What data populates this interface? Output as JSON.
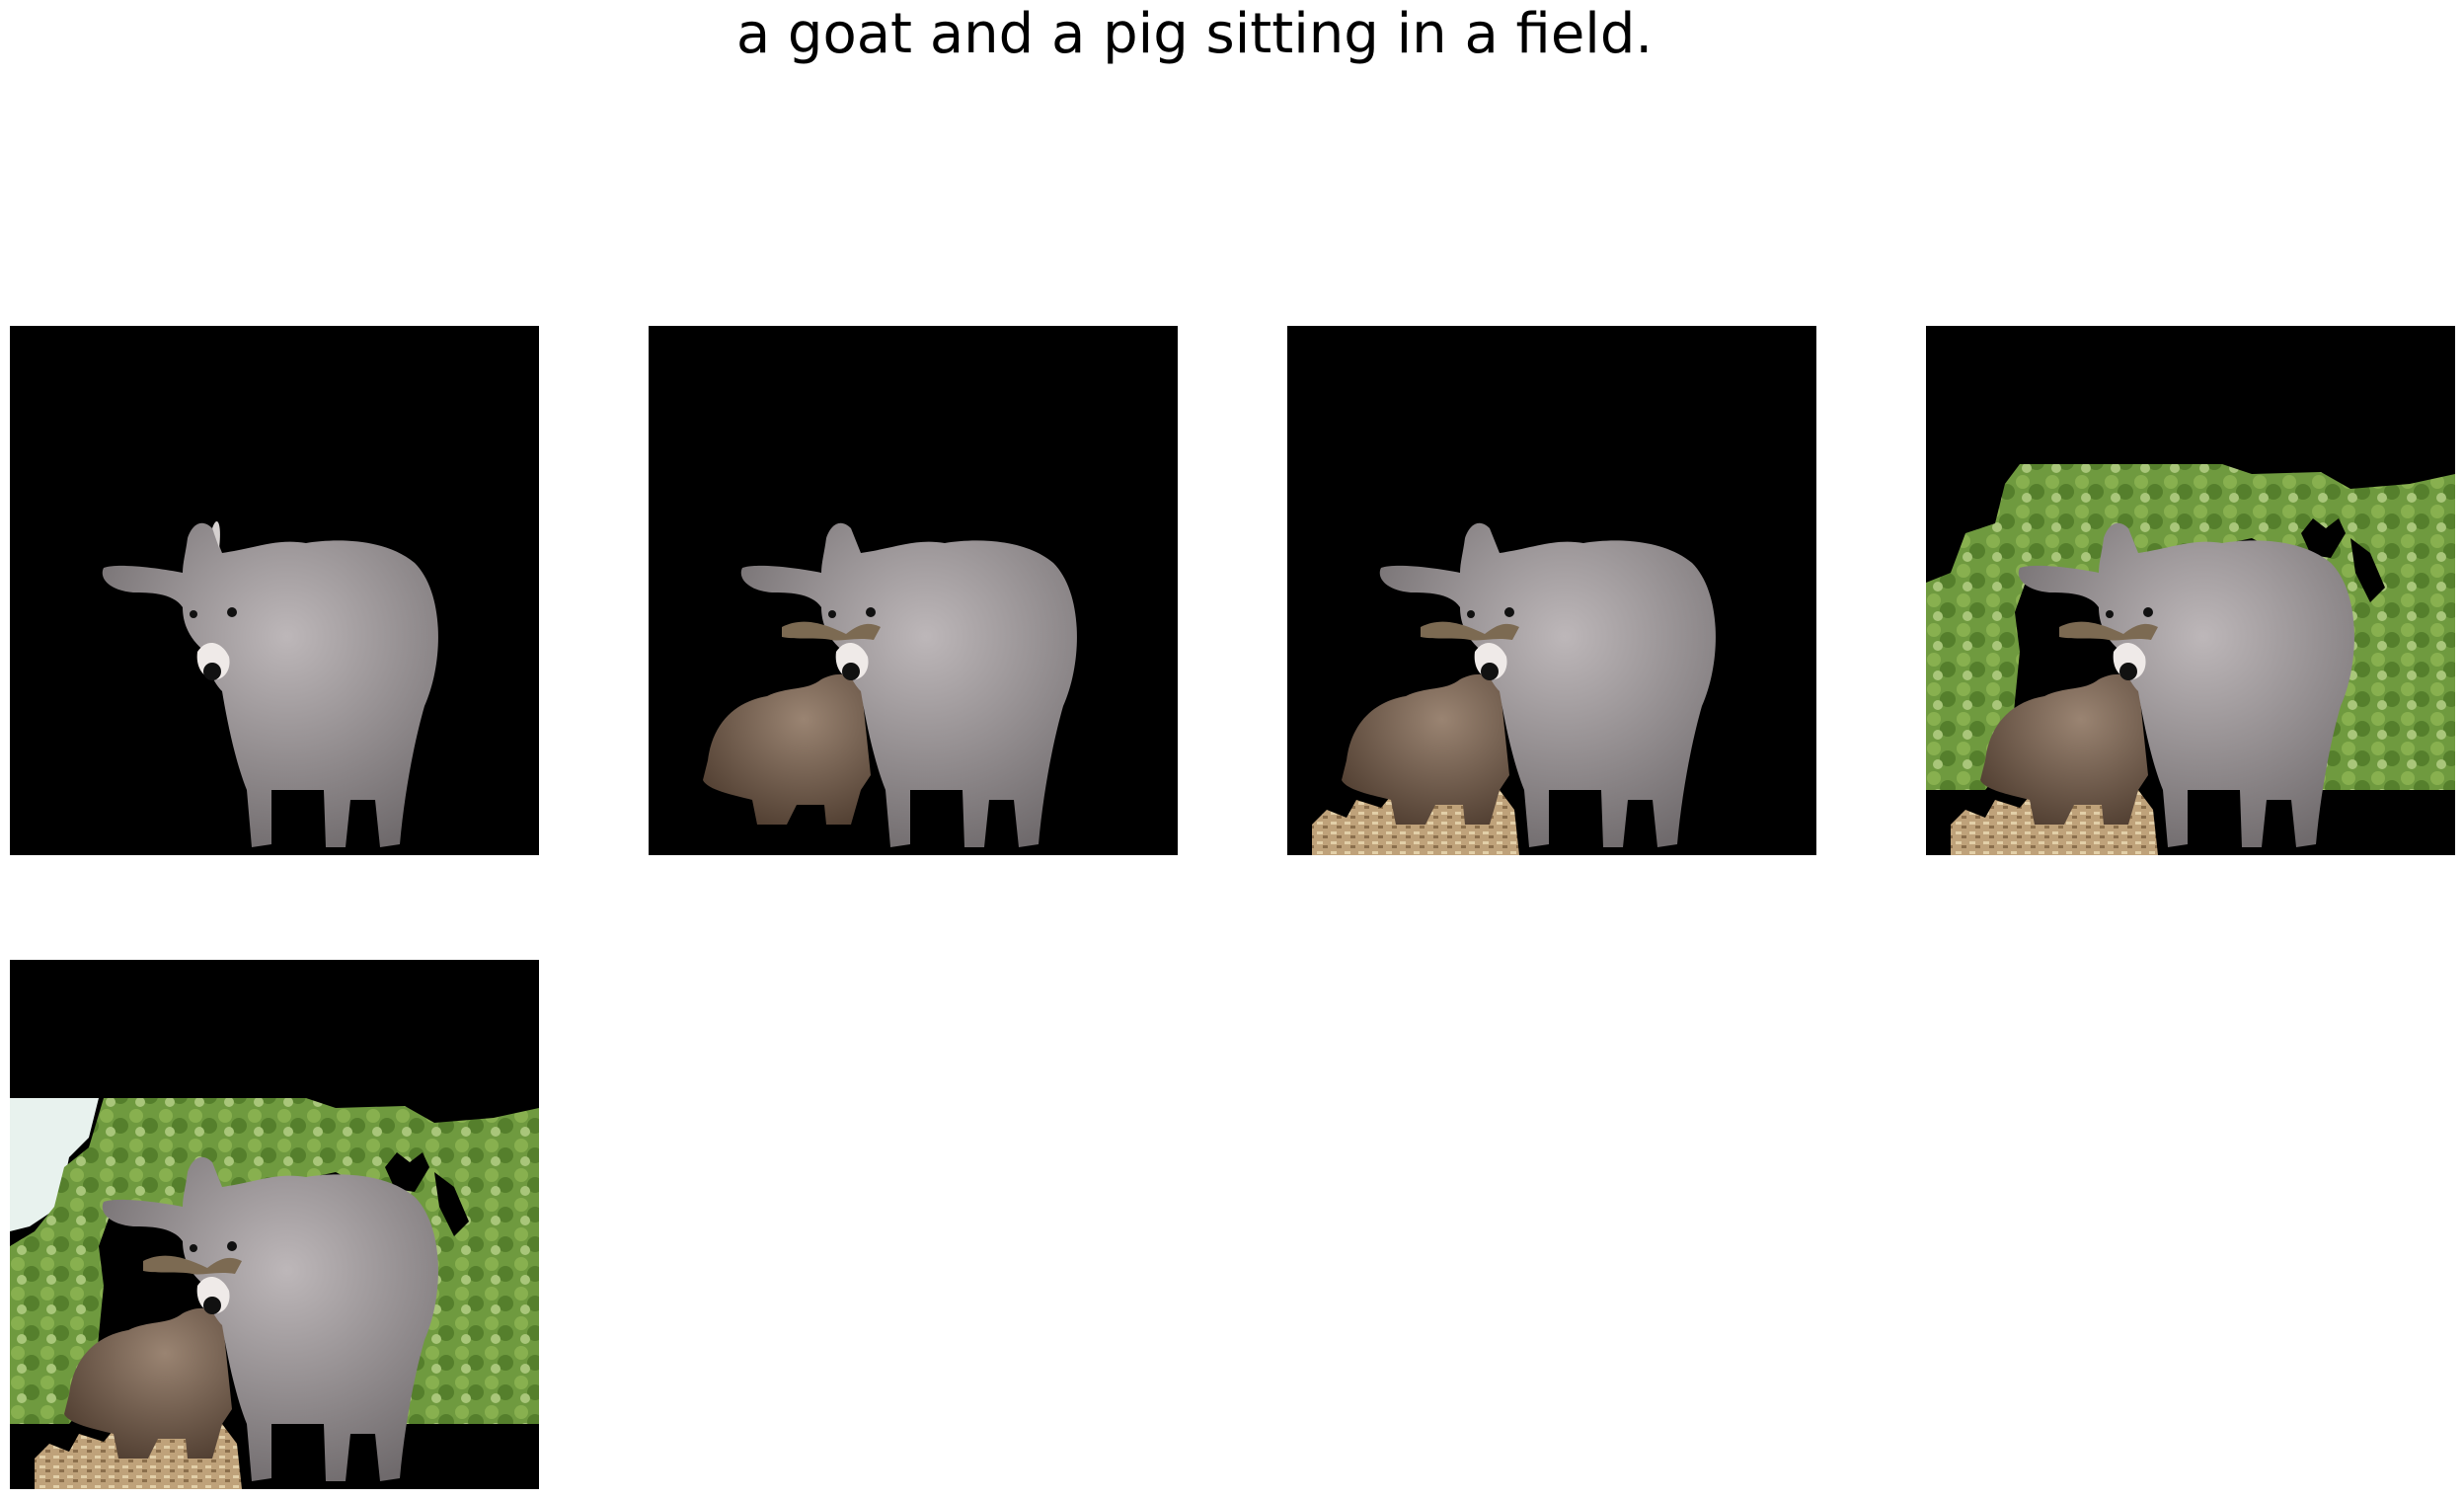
{
  "caption": "a goat and a pig sitting in a field.",
  "colors": {
    "background": "#000000",
    "goat_fur": "#a29c9e",
    "goat_shadow": "#6f6a6c",
    "pig_fur": "#6e5948",
    "ground": "#bfa27a",
    "foliage": "#6f9a3f",
    "foliage_light": "#a9c67a",
    "sky": "#e8f2ee"
  },
  "panels": [
    {
      "id": "step-1",
      "layers": [
        "goat"
      ]
    },
    {
      "id": "step-2",
      "layers": [
        "goat",
        "pig"
      ]
    },
    {
      "id": "step-3",
      "layers": [
        "goat",
        "pig",
        "ground"
      ]
    },
    {
      "id": "step-4",
      "layers": [
        "goat",
        "pig",
        "ground",
        "foliage"
      ]
    },
    {
      "id": "step-5",
      "layers": [
        "goat",
        "pig",
        "ground",
        "foliage",
        "sky"
      ]
    }
  ]
}
